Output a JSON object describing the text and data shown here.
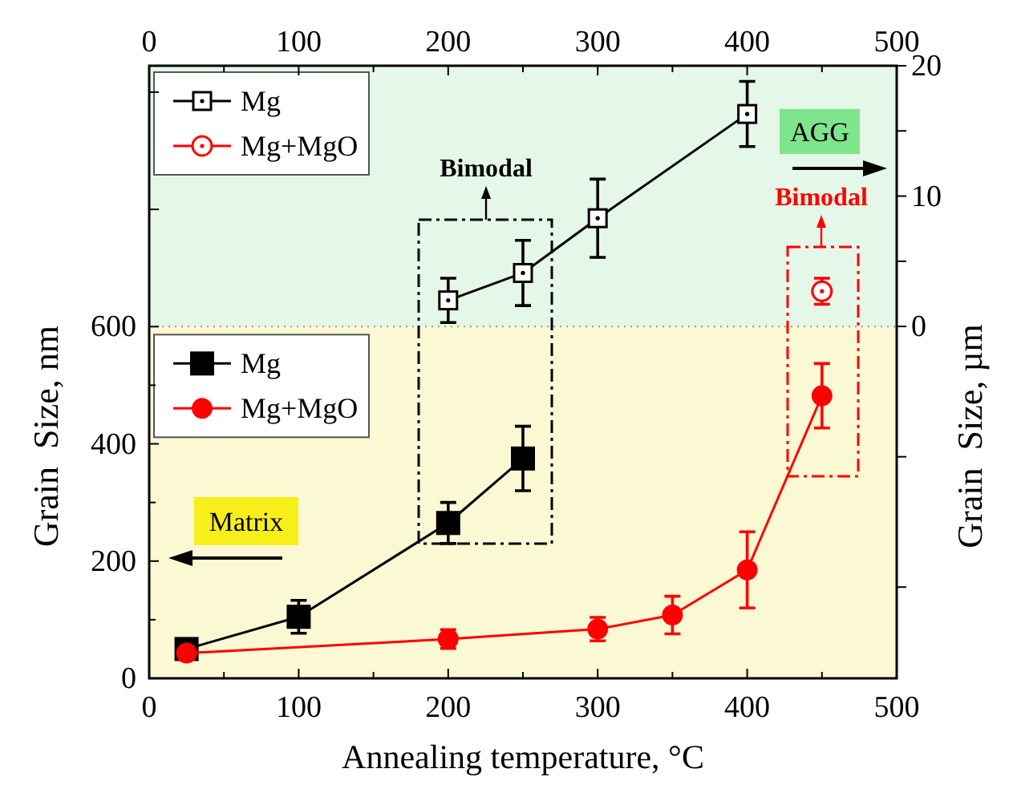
{
  "chart_data": {
    "type": "line",
    "xlabel": "Annealing temperature, °C",
    "ylabel": "Grain  Size, nm",
    "y2label": "Grain  Size, µm",
    "xlim": [
      0,
      500
    ],
    "ylim": [
      0,
      1045
    ],
    "y2lim": [
      -27,
      20
    ],
    "x2lim": [
      0,
      500
    ],
    "xticks": [
      0,
      {
        "value": 50,
        "label": null
      },
      100,
      {
        "value": 150,
        "label": null
      },
      200,
      {
        "value": 250,
        "label": null
      },
      300,
      {
        "value": 350,
        "label": null
      },
      400,
      {
        "value": 450,
        "label": null
      },
      500
    ],
    "x2ticks": [
      0,
      {
        "value": 50,
        "label": null
      },
      100,
      {
        "value": 150,
        "label": null
      },
      200,
      {
        "value": 250,
        "label": null
      },
      300,
      {
        "value": 350,
        "label": null
      },
      400,
      {
        "value": 450,
        "label": null
      },
      500
    ],
    "yticks": [
      0,
      {
        "value": 100,
        "label": null
      },
      200,
      {
        "value": 300,
        "label": null
      },
      400,
      {
        "value": 500,
        "label": null
      },
      600,
      {
        "value": 800,
        "label": null
      },
      {
        "value": 1000,
        "label": null
      }
    ],
    "y2ticks": [
      {
        "value": -20,
        "label": null
      },
      {
        "value": -10,
        "label": null
      },
      0,
      {
        "value": 5,
        "label": null
      },
      10,
      {
        "value": 15,
        "label": null
      },
      20
    ],
    "grid": false,
    "legend": "top left",
    "line_style": "solid",
    "bands": [
      {
        "axis": "y",
        "from": 600,
        "to": 1045,
        "color": "#e4f7e8"
      },
      {
        "axis": "y",
        "from": 0,
        "to": 600,
        "color": "#fbf8d4"
      }
    ],
    "ref_lines": [
      {
        "axis": "y",
        "value": 600,
        "line_style": "dotted",
        "color": "#999999"
      }
    ],
    "series": [
      {
        "name": "Mg",
        "color": "#000000",
        "marker": "square",
        "axis": "y2",
        "x": [
          200,
          250,
          300,
          400
        ],
        "values": [
          2.0,
          4.1,
          8.3,
          16.3
        ],
        "errors": [
          1.7,
          2.5,
          3.0,
          2.5
        ]
      },
      {
        "name": "Mg+MgO",
        "color": "#ff0000",
        "marker": "circle",
        "axis": "y2",
        "x": [
          450
        ],
        "values": [
          2.7
        ],
        "errors": [
          1.0
        ]
      },
      {
        "name": "Mg",
        "color": "#000000",
        "marker": "square",
        "axis": "y",
        "x": [
          25,
          100,
          200,
          250
        ],
        "values": [
          50,
          105,
          265,
          375
        ],
        "errors": [
          10,
          28,
          35,
          55
        ]
      },
      {
        "name": "Mg+MgO",
        "color": "#ff0000",
        "marker": "circle",
        "axis": "y",
        "x": [
          25,
          200,
          300,
          350,
          400,
          450
        ],
        "values": [
          43,
          67,
          84,
          108,
          185,
          482
        ],
        "errors": [
          10,
          16,
          20,
          32,
          65,
          55
        ]
      }
    ],
    "annotations": [
      "Bimodal",
      "Bimodal",
      "AGG",
      "Matrix"
    ]
  }
}
